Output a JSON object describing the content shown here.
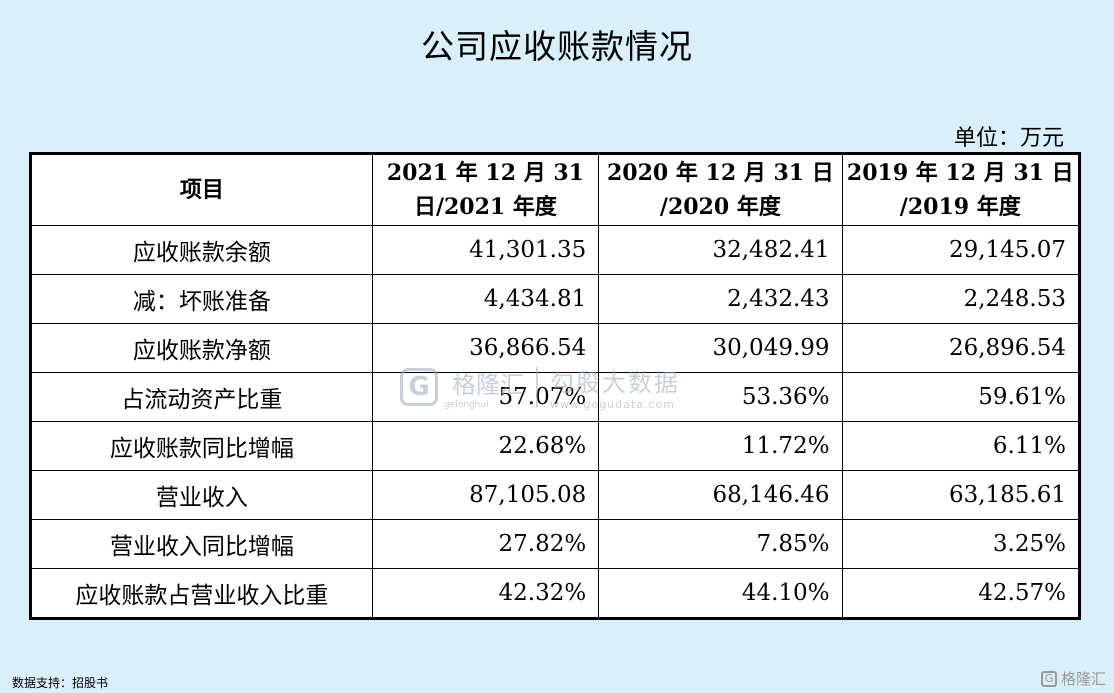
{
  "title": "公司应收账款情况",
  "unit": "单位：万元",
  "table": {
    "headers": [
      [
        "项目"
      ],
      [
        "2021 年 12 月 31",
        "日/2021 年度"
      ],
      [
        "2020 年 12 月 31 日",
        "/2020 年度"
      ],
      [
        "2019 年 12 月 31 日",
        "/2019 年度"
      ]
    ],
    "rows": [
      {
        "label": "应收账款余额",
        "values": [
          "41,301.35",
          "32,482.41",
          "29,145.07"
        ]
      },
      {
        "label": "减：坏账准备",
        "values": [
          "4,434.81",
          "2,432.43",
          "2,248.53"
        ]
      },
      {
        "label": "应收账款净额",
        "values": [
          "36,866.54",
          "30,049.99",
          "26,896.54"
        ]
      },
      {
        "label": "占流动资产比重",
        "values": [
          "57.07%",
          "53.36%",
          "59.61%"
        ]
      },
      {
        "label": "应收账款同比增幅",
        "values": [
          "22.68%",
          "11.72%",
          "6.11%"
        ]
      },
      {
        "label": "营业收入",
        "values": [
          "87,105.08",
          "68,146.46",
          "63,185.61"
        ]
      },
      {
        "label": "营业收入同比增幅",
        "values": [
          "27.82%",
          "7.85%",
          "3.25%"
        ]
      },
      {
        "label": "应收账款占营业收入比重",
        "values": [
          "42.32%",
          "44.10%",
          "42.57%"
        ]
      }
    ]
  },
  "watermark": {
    "logo_letter": "G",
    "brand": "格隆汇",
    "brand_sub": "gelonghui",
    "name": "勾股大数据",
    "url": "www.gogudata.com"
  },
  "source": "数据支持：招股书",
  "corner_logo": {
    "letter": "G",
    "text": "格隆汇"
  }
}
